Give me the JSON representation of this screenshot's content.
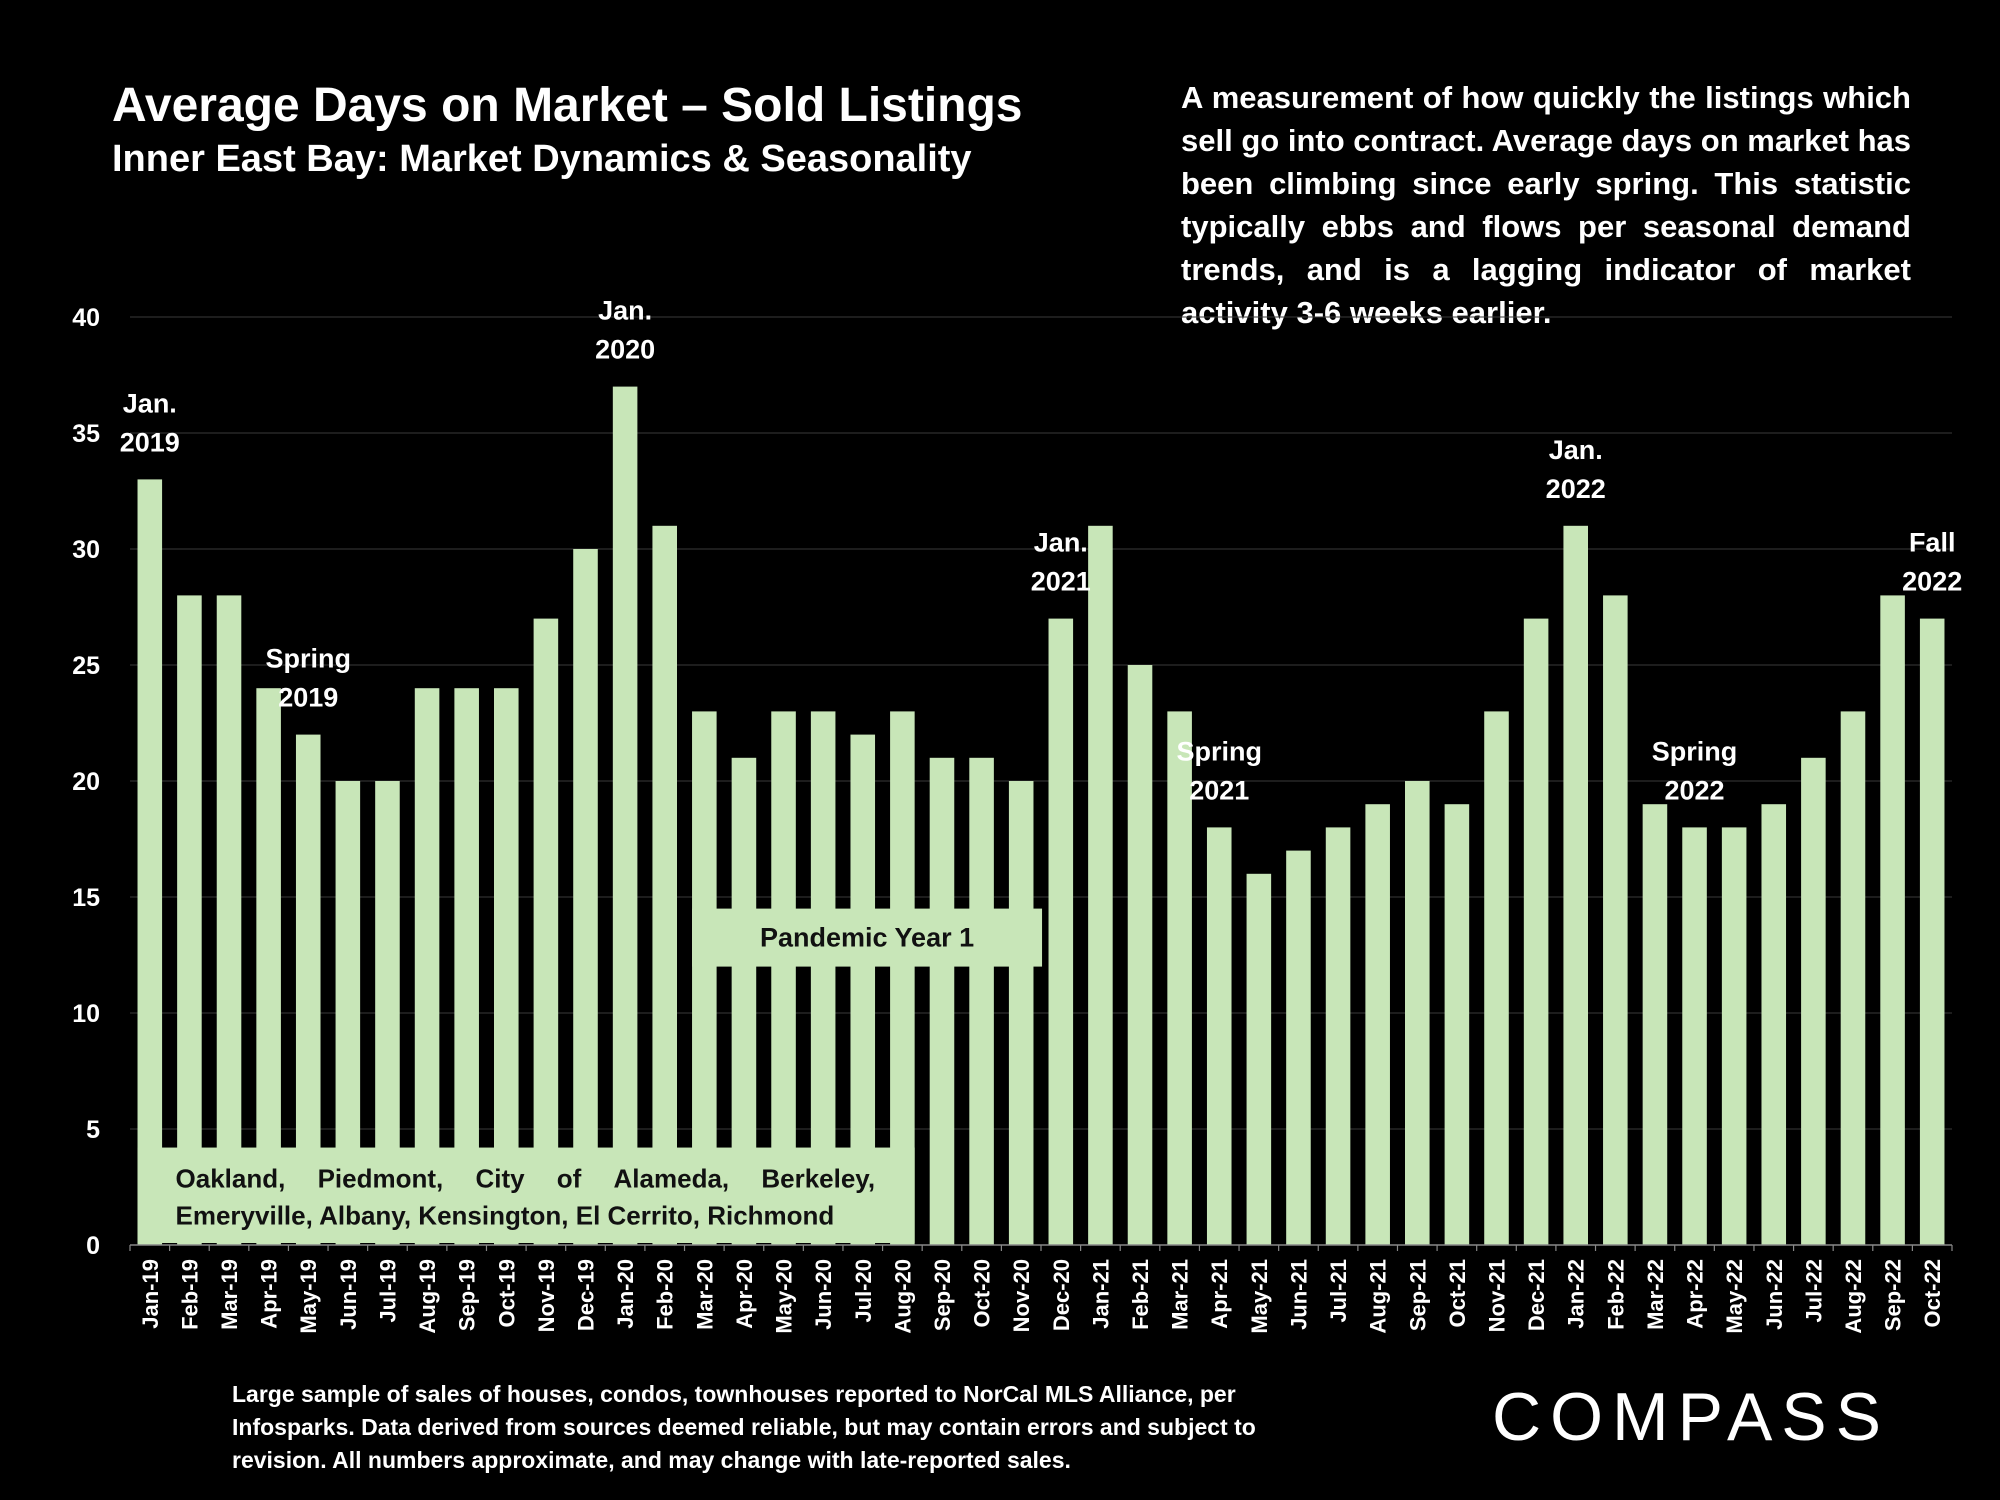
{
  "header": {
    "title": "Average Days on Market – Sold Listings",
    "subtitle": "Inner East Bay: Market Dynamics & Seasonality",
    "description": "A measurement of how quickly the listings which sell go into contract. Average days on market has been climbing since early spring. This statistic typically ebbs and flows per seasonal demand trends, and is a lagging indicator of market activity 3-6 weeks earlier."
  },
  "footer": {
    "note": "Large sample of sales of houses, condos, townhouses reported to NorCal MLS Alliance, per Infosparks. Data derived from sources deemed reliable, but may contain errors and subject to revision. All numbers approximate, and may change with late-reported sales.",
    "logo": "COMPASS"
  },
  "chart_data": {
    "type": "bar",
    "title": "Average Days on Market – Sold Listings",
    "xlabel": "",
    "ylabel": "",
    "ylim": [
      0,
      40
    ],
    "yticks": [
      0,
      5,
      10,
      15,
      20,
      25,
      30,
      35,
      40
    ],
    "grid": true,
    "bar_color": "#c8e6b8",
    "categories": [
      "Jan-19",
      "Feb-19",
      "Mar-19",
      "Apr-19",
      "May-19",
      "Jun-19",
      "Jul-19",
      "Aug-19",
      "Sep-19",
      "Oct-19",
      "Nov-19",
      "Dec-19",
      "Jan-20",
      "Feb-20",
      "Mar-20",
      "Apr-20",
      "May-20",
      "Jun-20",
      "Jul-20",
      "Aug-20",
      "Sep-20",
      "Oct-20",
      "Nov-20",
      "Dec-20",
      "Jan-21",
      "Feb-21",
      "Mar-21",
      "Apr-21",
      "May-21",
      "Jun-21",
      "Jul-21",
      "Aug-21",
      "Sep-21",
      "Oct-21",
      "Nov-21",
      "Dec-21",
      "Jan-22",
      "Feb-22",
      "Mar-22",
      "Apr-22",
      "May-22",
      "Jun-22",
      "Jul-22",
      "Aug-22",
      "Sep-22",
      "Oct-22"
    ],
    "values": [
      33,
      28,
      28,
      24,
      22,
      20,
      20,
      24,
      24,
      24,
      27,
      30,
      37,
      31,
      23,
      21,
      23,
      23,
      22,
      23,
      21,
      21,
      20,
      27,
      31,
      25,
      23,
      18,
      16,
      17,
      18,
      19,
      20,
      19,
      23,
      27,
      31,
      28,
      19,
      18,
      18,
      19,
      21,
      23,
      28,
      27
    ],
    "annotations": [
      {
        "lines": [
          "Jan.",
          "2019"
        ],
        "category": "Jan-19"
      },
      {
        "lines": [
          "Spring",
          "2019"
        ],
        "category": "May-19"
      },
      {
        "lines": [
          "Jan.",
          "2020"
        ],
        "category": "Jan-20"
      },
      {
        "lines": [
          "Jan.",
          "2021"
        ],
        "category": "Dec-20"
      },
      {
        "lines": [
          "Spring",
          "2021"
        ],
        "category": "Apr-21"
      },
      {
        "lines": [
          "Jan.",
          "2022"
        ],
        "category": "Jan-22"
      },
      {
        "lines": [
          "Spring",
          "2022"
        ],
        "category": "Apr-22"
      },
      {
        "lines": [
          "Fall",
          "2022"
        ],
        "category": "Oct-22"
      }
    ],
    "overlays": {
      "pandemic_label": "Pandemic Year 1",
      "regions": [
        "Oakland,",
        "Piedmont,",
        "City",
        "of",
        "Alameda,",
        "Berkeley,"
      ],
      "regions_line2": "Emeryville, Albany, Kensington, El Cerrito, Richmond"
    }
  }
}
